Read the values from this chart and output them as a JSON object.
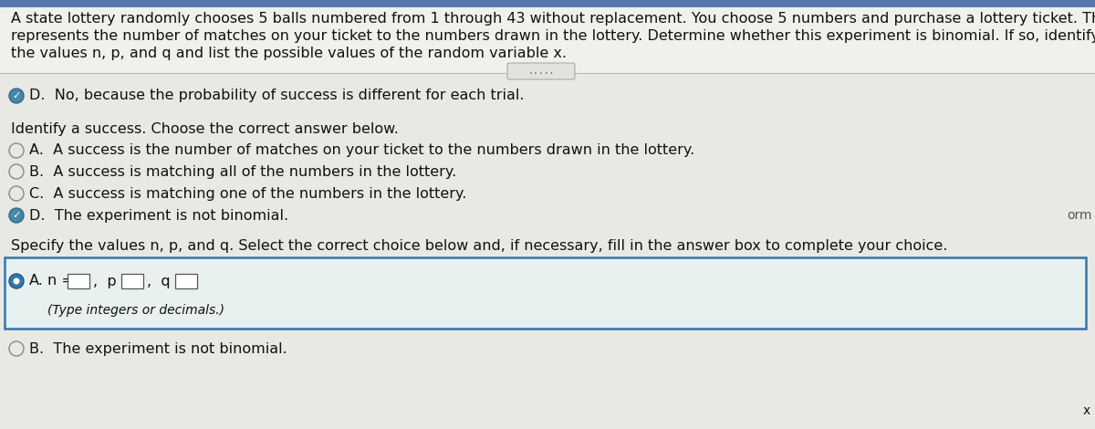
{
  "bg_color": "#d4d8cc",
  "top_area_bg": "#f0f0ec",
  "main_bg": "#e8e8e4",
  "selected_box_bg": "#e8f0f0",
  "selected_box_border": "#3377aa",
  "unselected_radio_color": "#aaaaaa",
  "selected_radio_color": "#3377aa",
  "text_color": "#111111",
  "gray_text": "#555555",
  "line_color": "#bbbbbb",
  "dots_bg": "#e0e4dc",
  "dots_border": "#aaaaaa",
  "paragraph_line1": "A state lottery randomly chooses 5 balls numbered from 1 through 43 without replacement. You choose 5 numbers and purchase a lottery ticket. The random variable",
  "paragraph_line2": "represents the number of matches on your ticket to the numbers drawn in the lottery. Determine whether this experiment is binomial. If so, identify a success, specify",
  "paragraph_line3": "the values n, p, and q and list the possible values of the random variable x.",
  "selected_d_text": "D.  No, because the probability of success is different for each trial.",
  "identify_header": "Identify a success. Choose the correct answer below.",
  "opt_a": "A.  A success is the number of matches on your ticket to the numbers drawn in the lottery.",
  "opt_b": "B.  A success is matching all of the numbers in the lottery.",
  "opt_c": "C.  A success is matching one of the numbers in the lottery.",
  "opt_d": "D.  The experiment is not binomial.",
  "specify_header": "Specify the values n, p, and q. Select the correct choice below and, if necessary, fill in the answer box to complete your choice.",
  "box_a_label": "A.",
  "box_a_n": "n =",
  "box_a_p": "p =",
  "box_a_q": "q =",
  "box_a_subtext": "(Type integers or decimals.)",
  "box_b_text": "B.  The experiment is not binomial.",
  "right_label": "orm",
  "bottom_x": "x",
  "dots_text": ".....",
  "font_size_para": 11.5,
  "font_size_main": 11.5,
  "font_size_small": 10.0
}
